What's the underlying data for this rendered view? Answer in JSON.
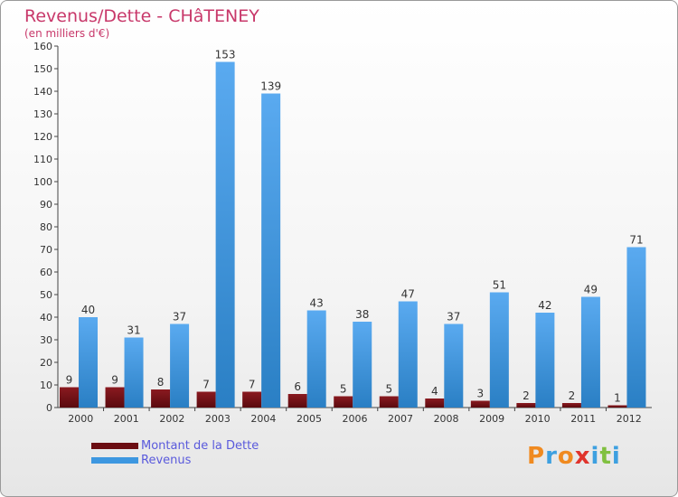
{
  "title": "Revenus/Dette - CHâTENEY",
  "subtitle": "(en milliers d'€)",
  "colors": {
    "title": "#c8386a",
    "dette": "#6b0d12",
    "revenus": "#3d97e0",
    "legend_text": "#5a5adc"
  },
  "chart_data": {
    "type": "bar",
    "title": "Revenus/Dette - CHâTENEY",
    "subtitle": "(en milliers d'€)",
    "categories": [
      "2000",
      "2001",
      "2002",
      "2003",
      "2004",
      "2005",
      "2006",
      "2007",
      "2008",
      "2009",
      "2010",
      "2011",
      "2012"
    ],
    "series": [
      {
        "name": "Montant de la Dette",
        "values": [
          9,
          9,
          8,
          7,
          7,
          6,
          5,
          5,
          4,
          3,
          2,
          2,
          1
        ]
      },
      {
        "name": "Revenus",
        "values": [
          40,
          31,
          37,
          153,
          139,
          43,
          38,
          47,
          37,
          51,
          42,
          49,
          71
        ]
      }
    ],
    "ylim": [
      0,
      160
    ],
    "yticks": [
      0,
      10,
      20,
      30,
      40,
      50,
      60,
      70,
      80,
      90,
      100,
      110,
      120,
      130,
      140,
      150,
      160
    ],
    "grid": false,
    "legend": "bottom-left"
  },
  "legend": [
    {
      "label": "Montant de la Dette"
    },
    {
      "label": "Revenus"
    }
  ],
  "logo": {
    "letters": [
      "P",
      "r",
      "o",
      "x",
      "i",
      "t",
      "i"
    ]
  }
}
